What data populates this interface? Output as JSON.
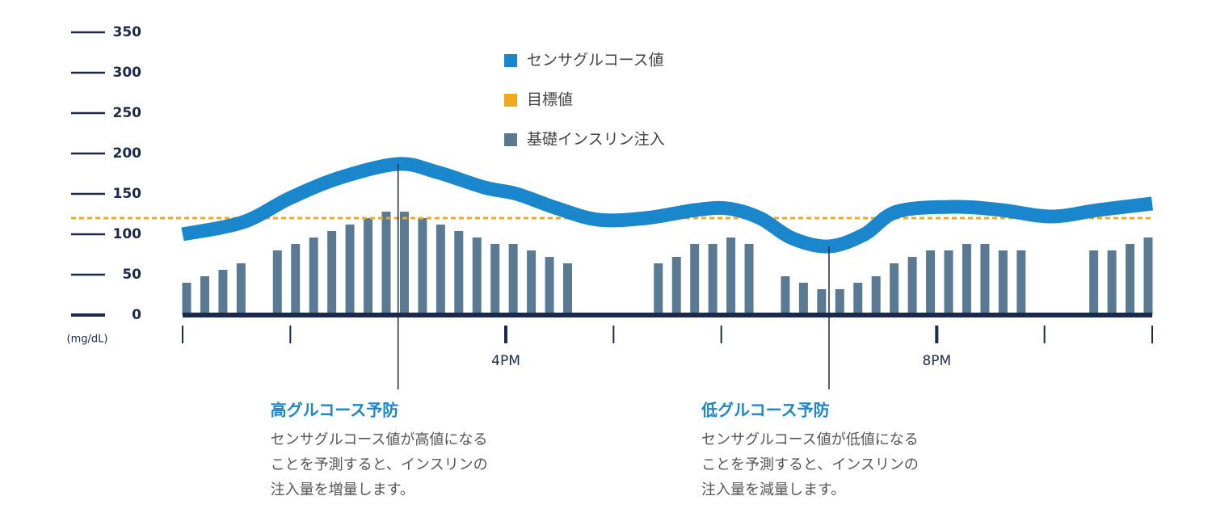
{
  "chart_data": {
    "type": "bar_line",
    "y_unit": "(mg/dL)",
    "ylim": [
      0,
      350
    ],
    "yticks": [
      0,
      50,
      100,
      150,
      200,
      250,
      300,
      350
    ],
    "xlim": [
      13,
      22
    ],
    "xticks": [
      {
        "value": 16,
        "label": "4PM"
      },
      {
        "value": 20,
        "label": "8PM"
      }
    ],
    "minor_xticks": [
      13,
      14,
      15,
      17,
      18,
      19,
      21,
      22
    ],
    "series": [
      {
        "name": "センサグルコース値",
        "color": "#1a86cc",
        "type": "line",
        "x": [
          13,
          13.56,
          14,
          14.46,
          15,
          15.36,
          15.8,
          16.1,
          16.48,
          16.86,
          17.3,
          17.76,
          18.06,
          18.36,
          18.66,
          19,
          19.33,
          19.63,
          20.16,
          20.6,
          21.06,
          21.5,
          22
        ],
        "values": [
          100,
          115,
          145,
          170,
          187,
          177,
          158,
          150,
          132,
          118,
          120,
          130,
          132,
          120,
          95,
          85,
          100,
          128,
          134,
          130,
          122,
          130,
          138
        ]
      },
      {
        "name": "目標値",
        "color": "#f0a91e",
        "type": "target",
        "value": 120
      },
      {
        "name": "基礎インスリン注入",
        "color": "#5a7a94",
        "type": "bar",
        "values": [
          40,
          48,
          56,
          64,
          null,
          80,
          88,
          96,
          104,
          112,
          120,
          128,
          128,
          120,
          112,
          104,
          96,
          88,
          88,
          80,
          72,
          64,
          null,
          null,
          null,
          null,
          64,
          72,
          88,
          88,
          96,
          88,
          null,
          48,
          40,
          32,
          32,
          40,
          48,
          64,
          72,
          80,
          80,
          88,
          88,
          80,
          80,
          null,
          null,
          null,
          80,
          80,
          88,
          96
        ]
      }
    ],
    "annotations": [
      {
        "x": 15,
        "title": "高グルコース予防",
        "lines": [
          "センサグルコース値が高値になる",
          "ことを予測すると、インスリンの",
          "注入量を増量します。"
        ]
      },
      {
        "x": 19,
        "title": "低グルコース予防",
        "lines": [
          "センサグルコース値が低値になる",
          "ことを予測すると、インスリンの",
          "注入量を減量します。"
        ]
      }
    ]
  }
}
